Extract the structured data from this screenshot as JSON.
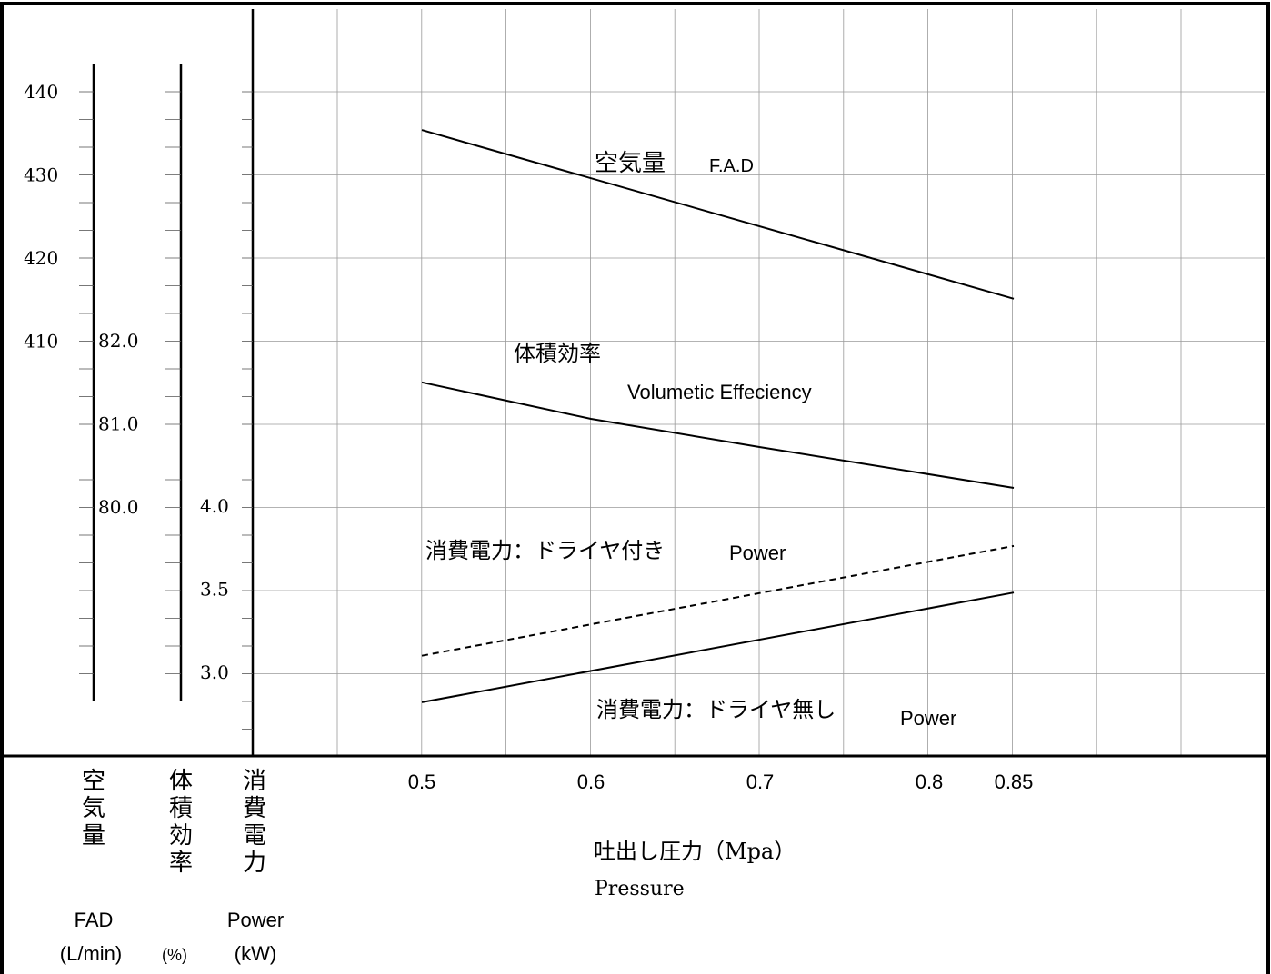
{
  "chart_data": {
    "type": "line",
    "x": [
      0.5,
      0.85
    ],
    "x_ticks": [
      "0.5",
      "0.6",
      "0.7",
      "0.8",
      "0.85"
    ],
    "xlim": [
      0.5,
      0.85
    ],
    "xlabel_ja": "吐出し圧力（Mpa）",
    "xlabel_en": "Pressure",
    "grid": true,
    "axes": {
      "fad": {
        "ticks": [
          "440",
          "430",
          "420",
          "410"
        ],
        "label_ja": [
          "空",
          "気",
          "量"
        ],
        "label_en": "FAD",
        "unit": "(L/min)"
      },
      "vol": {
        "ticks": [
          "82.0",
          "81.0",
          "80.0"
        ],
        "label_ja": [
          "体",
          "積",
          "効",
          "率"
        ],
        "unit": "(%)"
      },
      "power": {
        "ticks": [
          "4.0",
          "3.5",
          "3.0"
        ],
        "label_ja": [
          "消",
          "費",
          "電",
          "力"
        ],
        "label_en": "Power",
        "unit": "(kW)"
      }
    },
    "series": [
      {
        "axis": "fad",
        "style": "solid",
        "x": [
          0.5,
          0.85
        ],
        "y": [
          435.4,
          415.1
        ],
        "label_ja": "空気量",
        "label_en": "F.A.D"
      },
      {
        "axis": "vol",
        "style": "solid",
        "x": [
          0.5,
          0.6,
          0.7,
          0.85
        ],
        "y": [
          81.5,
          81.06,
          80.72,
          80.23
        ],
        "label_ja": "体積効率",
        "label_en": "Volumetic Effeciency"
      },
      {
        "axis": "power",
        "style": "dashed",
        "x": [
          0.5,
          0.85
        ],
        "y": [
          3.1,
          3.76
        ],
        "label_ja": "消費電力：ドライヤ付き",
        "label_en": "Power"
      },
      {
        "axis": "power",
        "style": "solid",
        "x": [
          0.5,
          0.85
        ],
        "y": [
          2.82,
          3.48
        ],
        "label_ja": "消費電力：ドライヤ無し",
        "label_en": "Power"
      }
    ]
  }
}
